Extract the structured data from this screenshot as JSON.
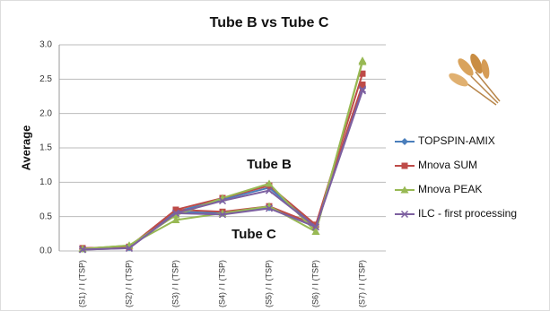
{
  "chart_data": {
    "type": "line",
    "title": "Tube B vs Tube C",
    "y_label": "Average",
    "annotations": [
      "Tube B",
      "Tube C"
    ],
    "categories": [
      "(S1) / I (TSP)",
      "(S2) / I (TSP)",
      "(S3) / I (TSP)",
      "(S4) / I (TSP)",
      "(S5) / I (TSP)",
      "(S6) / I (TSP)",
      "(S7) / I (TSP)"
    ],
    "ylim": [
      0,
      3
    ],
    "yticks": [
      {
        "value": 0,
        "label": "0.0"
      },
      {
        "value": 0.5,
        "label": "0.5"
      },
      {
        "value": 1,
        "label": "1.0"
      },
      {
        "value": 1.5,
        "label": "1.5"
      },
      {
        "value": 2,
        "label": "2.0"
      },
      {
        "value": 2.5,
        "label": "2.5"
      },
      {
        "value": 3,
        "label": "3.0"
      }
    ],
    "grid": true,
    "series": [
      {
        "name": "TOPSPIN-AMIX",
        "color": "#4a7ebb",
        "marker": "diamond",
        "tube_b": [
          0.03,
          0.05,
          0.57,
          0.75,
          0.92,
          0.35,
          2.4
        ],
        "tube_c": [
          0.03,
          0.05,
          0.57,
          0.55,
          0.63,
          0.35,
          2.38
        ]
      },
      {
        "name": "Mnova SUM",
        "color": "#be4b48",
        "marker": "square",
        "tube_b": [
          0.04,
          0.06,
          0.6,
          0.77,
          0.95,
          0.38,
          2.58
        ],
        "tube_c": [
          0.04,
          0.06,
          0.6,
          0.57,
          0.65,
          0.38,
          2.42
        ]
      },
      {
        "name": "Mnova PEAK",
        "color": "#98b954",
        "marker": "triangle",
        "tube_b": [
          0.03,
          0.08,
          0.52,
          0.77,
          0.98,
          0.28,
          2.77
        ],
        "tube_c": [
          0.03,
          0.08,
          0.45,
          0.55,
          0.65,
          0.28,
          2.75
        ]
      },
      {
        "name": "ILC - first processing",
        "color": "#7d60a0",
        "marker": "cross",
        "tube_b": [
          0.02,
          0.04,
          0.55,
          0.73,
          0.88,
          0.35,
          2.35
        ],
        "tube_c": [
          0.02,
          0.04,
          0.55,
          0.53,
          0.62,
          0.35,
          2.33
        ]
      }
    ]
  }
}
